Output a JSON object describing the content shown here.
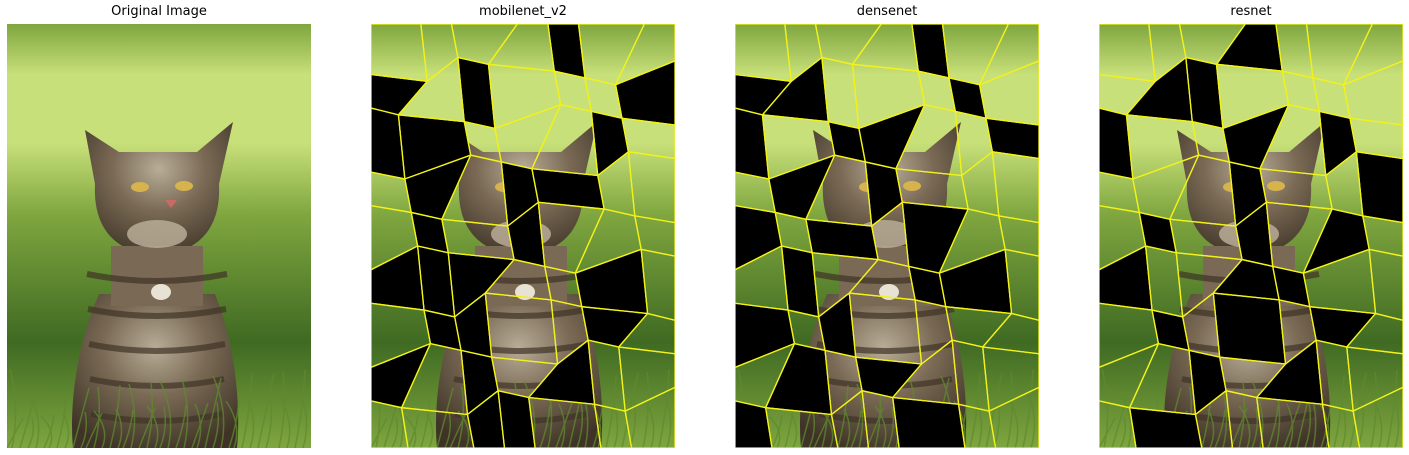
{
  "figure": {
    "panels": [
      {
        "id": "original",
        "title": "Original Image",
        "type": "photo"
      },
      {
        "id": "mobilenet",
        "title": "mobilenet_v2",
        "type": "mask",
        "hidden": [
          [
            0,
            4
          ],
          [
            1,
            0
          ],
          [
            1,
            2
          ],
          [
            1,
            6
          ],
          [
            2,
            0
          ],
          [
            2,
            1
          ],
          [
            2,
            5
          ],
          [
            3,
            1
          ],
          [
            3,
            3
          ],
          [
            3,
            4
          ],
          [
            4,
            1
          ],
          [
            4,
            3
          ],
          [
            5,
            0
          ],
          [
            5,
            1
          ],
          [
            5,
            2
          ],
          [
            5,
            5
          ],
          [
            6,
            1
          ],
          [
            6,
            2
          ],
          [
            6,
            5
          ],
          [
            7,
            0
          ],
          [
            7,
            2
          ],
          [
            7,
            4
          ],
          [
            8,
            2
          ],
          [
            8,
            3
          ]
        ]
      },
      {
        "id": "densenet",
        "title": "densenet",
        "type": "mask",
        "hidden": [
          [
            0,
            4
          ],
          [
            1,
            0
          ],
          [
            1,
            1
          ],
          [
            1,
            5
          ],
          [
            2,
            0
          ],
          [
            2,
            2
          ],
          [
            2,
            3
          ],
          [
            2,
            6
          ],
          [
            3,
            1
          ],
          [
            3,
            3
          ],
          [
            4,
            0
          ],
          [
            4,
            2
          ],
          [
            4,
            4
          ],
          [
            5,
            1
          ],
          [
            5,
            4
          ],
          [
            5,
            5
          ],
          [
            6,
            0
          ],
          [
            6,
            2
          ],
          [
            7,
            1
          ],
          [
            7,
            3
          ],
          [
            8,
            0
          ],
          [
            8,
            4
          ]
        ]
      },
      {
        "id": "resnet",
        "title": "resnet",
        "type": "mask",
        "hidden": [
          [
            0,
            3
          ],
          [
            1,
            1
          ],
          [
            1,
            2
          ],
          [
            2,
            0
          ],
          [
            2,
            3
          ],
          [
            2,
            5
          ],
          [
            3,
            3
          ],
          [
            3,
            6
          ],
          [
            4,
            1
          ],
          [
            4,
            3
          ],
          [
            4,
            5
          ],
          [
            5,
            0
          ],
          [
            5,
            3
          ],
          [
            5,
            4
          ],
          [
            6,
            1
          ],
          [
            6,
            3
          ],
          [
            6,
            5
          ],
          [
            7,
            2
          ],
          [
            7,
            4
          ],
          [
            8,
            1
          ]
        ]
      }
    ],
    "colors": {
      "background": "#ffffff",
      "boundary": "#f2f21a",
      "mask": "#000000",
      "grass_light": "#c8e07a",
      "grass_mid": "#7fa63f",
      "grass_dark": "#3f6a22",
      "cat_fur": "#7a6a55",
      "cat_dark": "#3e3326",
      "cat_light": "#b8ad98",
      "eye": "#d6b34c",
      "nose": "#c96b64"
    }
  }
}
